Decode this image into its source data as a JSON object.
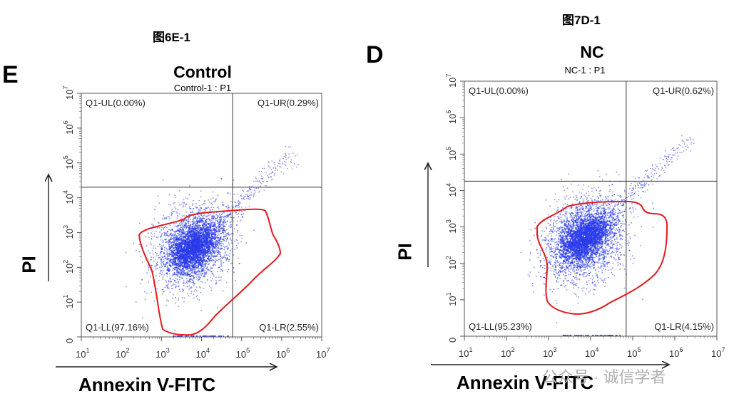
{
  "figure_titles": {
    "left": "图6E-1",
    "right": "图7D-1"
  },
  "watermark": "公众号 · 诚信学者",
  "chart_data": [
    {
      "type": "scatter",
      "panel_letter": "E",
      "title": "Control",
      "subtitle": "Control-1 : P1",
      "xlabel": "Annexin V-FITC",
      "ylabel": "PI",
      "x_scale": "log",
      "y_scale": "log",
      "xlim": [
        10,
        10000000
      ],
      "ylim": [
        0,
        10000000
      ],
      "x_ticks": [
        {
          "value": 10,
          "base": "10",
          "exp": "1"
        },
        {
          "value": 100,
          "base": "10",
          "exp": "2"
        },
        {
          "value": 1000,
          "base": "10",
          "exp": "3"
        },
        {
          "value": 10000,
          "base": "10",
          "exp": "4"
        },
        {
          "value": 100000,
          "base": "10",
          "exp": "5"
        },
        {
          "value": 1000000,
          "base": "10",
          "exp": "6"
        },
        {
          "value": 10000000,
          "base": "10",
          "exp": "7"
        }
      ],
      "y_ticks": [
        {
          "value": 0,
          "base": "0",
          "exp": ""
        },
        {
          "value": 10,
          "base": "10",
          "exp": "1"
        },
        {
          "value": 100,
          "base": "10",
          "exp": "2"
        },
        {
          "value": 1000,
          "base": "10",
          "exp": "3"
        },
        {
          "value": 10000,
          "base": "10",
          "exp": "4"
        },
        {
          "value": 100000,
          "base": "10",
          "exp": "5"
        },
        {
          "value": 1000000,
          "base": "10",
          "exp": "6"
        },
        {
          "value": 10000000,
          "base": "10",
          "exp": "7"
        }
      ],
      "quadrant_gate": {
        "x": 60000,
        "y": 20000
      },
      "quadrants": [
        {
          "id": "UL",
          "label": "Q1-UL(0.00%)",
          "percent": 0.0
        },
        {
          "id": "UR",
          "label": "Q1-UR(0.29%)",
          "percent": 0.29
        },
        {
          "id": "LL",
          "label": "Q1-LL(97.16%)",
          "percent": 97.16
        },
        {
          "id": "LR",
          "label": "Q1-LR(2.55%)",
          "percent": 2.55
        }
      ],
      "population_center": {
        "x": 6000,
        "y": 400
      },
      "gate_outline_color": "#e31a1c",
      "point_color": "#2a3bea",
      "grid": false
    },
    {
      "type": "scatter",
      "panel_letter": "D",
      "title": "NC",
      "subtitle": "NC-1 : P1",
      "xlabel": "Annexin V-FITC",
      "ylabel": "PI",
      "x_scale": "log",
      "y_scale": "log",
      "xlim": [
        10,
        10000000
      ],
      "ylim": [
        0,
        10000000
      ],
      "x_ticks": [
        {
          "value": 10,
          "base": "10",
          "exp": "1"
        },
        {
          "value": 100,
          "base": "10",
          "exp": "2"
        },
        {
          "value": 1000,
          "base": "10",
          "exp": "3"
        },
        {
          "value": 10000,
          "base": "10",
          "exp": "4"
        },
        {
          "value": 100000,
          "base": "10",
          "exp": "5"
        },
        {
          "value": 1000000,
          "base": "10",
          "exp": "6"
        },
        {
          "value": 10000000,
          "base": "10",
          "exp": "7"
        }
      ],
      "y_ticks": [
        {
          "value": 0,
          "base": "0",
          "exp": ""
        },
        {
          "value": 10,
          "base": "10",
          "exp": "1"
        },
        {
          "value": 100,
          "base": "10",
          "exp": "2"
        },
        {
          "value": 1000,
          "base": "10",
          "exp": "3"
        },
        {
          "value": 10000,
          "base": "10",
          "exp": "4"
        },
        {
          "value": 100000,
          "base": "10",
          "exp": "5"
        },
        {
          "value": 1000000,
          "base": "10",
          "exp": "6"
        },
        {
          "value": 10000000,
          "base": "10",
          "exp": "7"
        }
      ],
      "quadrant_gate": {
        "x": 70000,
        "y": 18000
      },
      "quadrants": [
        {
          "id": "UL",
          "label": "Q1-UL(0.00%)",
          "percent": 0.0
        },
        {
          "id": "UR",
          "label": "Q1-UR(0.62%)",
          "percent": 0.62
        },
        {
          "id": "LL",
          "label": "Q1-LL(95.23%)",
          "percent": 95.23
        },
        {
          "id": "LR",
          "label": "Q1-LR(4.15%)",
          "percent": 4.15
        }
      ],
      "population_center": {
        "x": 7000,
        "y": 500
      },
      "gate_outline_color": "#e31a1c",
      "point_color": "#2a3bea",
      "grid": false
    }
  ]
}
